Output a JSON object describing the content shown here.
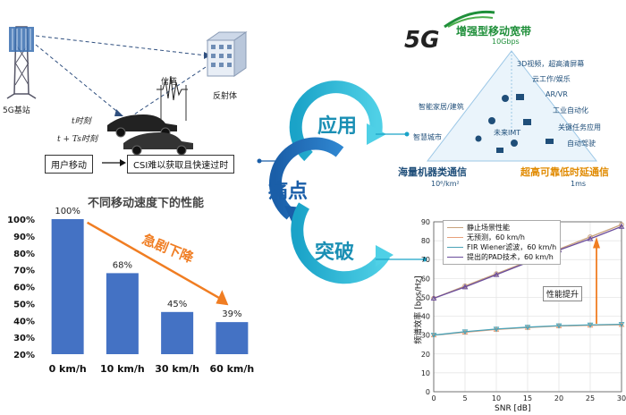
{
  "scene": {
    "base_station_label": "5G基站",
    "channel_label": "信道",
    "reflector_label": "反射体",
    "time_t": "t时刻",
    "time_t_plus": "t + Ts时刻",
    "user_move_label": "用户移动",
    "csi_label": "CSI难以获取且快速过时"
  },
  "cycle": {
    "application": "应用",
    "pain_point": "痛点",
    "breakthrough": "突破"
  },
  "application_5g": {
    "logo": "5G",
    "embb_title": "增强型移动宽带",
    "embb_rate": "10Gbps",
    "items": [
      "3D视频，超高清屏幕",
      "云工作/娱乐",
      "AR/VR",
      "工业自动化",
      "关键任务应用",
      "自动驾驶",
      "智能家居/建筑",
      "智慧城市",
      "未来IMT"
    ],
    "mmtc_title": "海量机器类通信",
    "mmtc_density": "10⁶/km²",
    "urllc_title": "超高可靠低时延通信",
    "urllc_latency": "1ms"
  },
  "bar_chart": {
    "chart_data": {
      "type": "bar",
      "title": "不同移动速度下的性能",
      "categories": [
        "0 km/h",
        "10 km/h",
        "30 km/h",
        "60 km/h"
      ],
      "values": [
        100,
        68,
        45,
        39
      ],
      "value_labels": [
        "100%",
        "68%",
        "45%",
        "39%"
      ],
      "ylim": [
        20,
        100
      ],
      "yticks": [
        "100%",
        "90%",
        "80%",
        "70%",
        "60%",
        "50%",
        "40%",
        "30%",
        "20%"
      ],
      "annotation": "急剧下降",
      "bar_color": "#4472c4",
      "annotation_color": "#f07d22"
    }
  },
  "line_chart": {
    "chart_data": {
      "type": "line",
      "xlabel": "SNR [dB]",
      "ylabel": "频谱效率 [bps/Hz]",
      "xlim": [
        0,
        30
      ],
      "ylim": [
        0,
        90
      ],
      "xticks": [
        0,
        5,
        10,
        15,
        20,
        25,
        30
      ],
      "yticks": [
        0,
        10,
        20,
        30,
        40,
        50,
        60,
        70,
        80,
        90
      ],
      "x": [
        0,
        5,
        10,
        15,
        20,
        25,
        30
      ],
      "series": [
        {
          "name": "静止场景性能",
          "values": [
            49.5,
            56,
            62.5,
            69,
            75.5,
            82,
            88.5
          ],
          "color": "#c8a27c",
          "marker": "circle"
        },
        {
          "name": "无预测，60 km/h",
          "values": [
            30,
            31.5,
            33,
            34,
            34.8,
            35.2,
            35.5
          ],
          "color": "#e8a07a",
          "marker": "triangle"
        },
        {
          "name": "FIR Wiener滤波，60 km/h",
          "values": [
            30,
            31.8,
            33.2,
            34.2,
            35,
            35.4,
            35.7
          ],
          "color": "#4aa3b8",
          "marker": "tri-down"
        },
        {
          "name": "提出的PAD技术，60 km/h",
          "values": [
            49.5,
            55.5,
            62,
            68.5,
            75,
            81,
            87.5
          ],
          "color": "#6a4c9c",
          "marker": "triangle"
        }
      ],
      "annotation": "性能提升",
      "annotation_color": "#f07d22"
    }
  }
}
